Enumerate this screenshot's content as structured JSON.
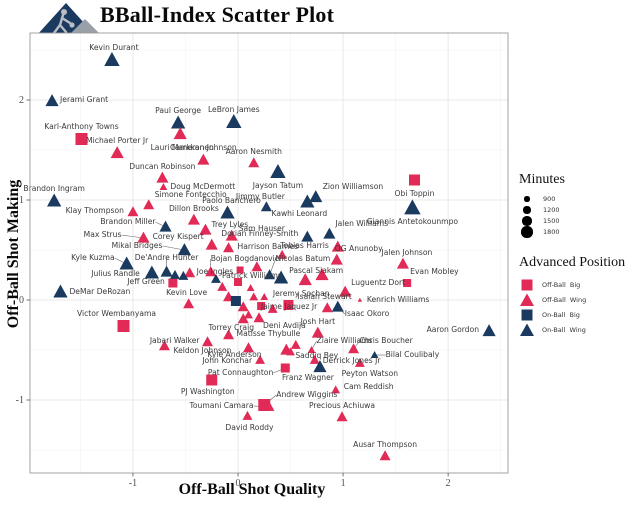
{
  "header": {
    "title": "BBall-Index Scatter Plot",
    "logo": "bball-index-logo"
  },
  "colors": {
    "off_ball": "#E12A56",
    "on_ball": "#1B3A5F",
    "label_text": "#3a3a3a",
    "grid_major": "#e3e3e3",
    "grid_minor": "#f2f2f2",
    "panel_border": "#9a9a9a",
    "tick_text": "#4d4d4d"
  },
  "styles": {
    "obb": {
      "shape": "square",
      "color": "#E12A56"
    },
    "obw": {
      "shape": "triangle",
      "color": "#E12A56"
    },
    "onb": {
      "shape": "square",
      "color": "#1B3A5F"
    },
    "onw": {
      "shape": "triangle",
      "color": "#1B3A5F"
    }
  },
  "legend": {
    "size": {
      "title": "Minutes",
      "entries": [
        {
          "label": "900",
          "r": 2.6
        },
        {
          "label": "1200",
          "r": 3.6
        },
        {
          "label": "1500",
          "r": 4.6
        },
        {
          "label": "1800",
          "r": 5.6
        }
      ]
    },
    "position": {
      "title": "Advanced Position",
      "entries": [
        {
          "label": "Off-Ball  Big",
          "key": "obb"
        },
        {
          "label": "Off-Ball  Wing",
          "key": "obw"
        },
        {
          "label": "On-Ball  Big",
          "key": "onb"
        },
        {
          "label": "On-Ball  Wing",
          "key": "onw"
        }
      ]
    }
  },
  "chart_data": {
    "type": "scatter",
    "title": "BBall-Index Scatter Plot",
    "xlabel": "Off-Ball Shot Quality",
    "ylabel": "Off-Ball Shot Making",
    "xlim": [
      -1.98,
      2.57
    ],
    "ylim": [
      -1.73,
      2.67
    ],
    "xticks": [
      -1,
      0,
      1,
      2
    ],
    "yticks": [
      -1,
      0,
      1,
      2
    ],
    "xminor": [
      -1.5,
      -0.5,
      0.5,
      1.5,
      2.5
    ],
    "yminor": [
      -1.5,
      -0.5,
      0.5,
      1.5,
      2.5
    ],
    "size_encoding": "minutes",
    "shape_encoding": "advanced position",
    "points": [
      {
        "n": "Kevin Durant",
        "x": -1.2,
        "y": 2.4,
        "p": "onw",
        "s": 7,
        "lp": [
          2,
          -10
        ],
        "a": "m"
      },
      {
        "n": "Jerami Grant",
        "x": -1.77,
        "y": 1.99,
        "p": "onw",
        "s": 6,
        "lp": [
          8,
          1
        ],
        "a": "s"
      },
      {
        "n": "Karl-Anthony Towns",
        "x": -1.49,
        "y": 1.61,
        "p": "obb",
        "s": 6,
        "lp": [
          0,
          -10
        ],
        "a": "m"
      },
      {
        "n": "Paul George",
        "x": -0.57,
        "y": 1.77,
        "p": "onw",
        "s": 6.5,
        "lp": [
          0,
          -10
        ],
        "a": "m"
      },
      {
        "n": "LeBron James",
        "x": -0.04,
        "y": 1.78,
        "p": "onw",
        "s": 7,
        "lp": [
          0,
          -10
        ],
        "a": "m"
      },
      {
        "n": "Lauri Markkanen",
        "x": -0.55,
        "y": 1.66,
        "p": "obw",
        "s": 6,
        "lp": [
          2,
          16
        ],
        "a": "m"
      },
      {
        "n": "Michael Porter Jr",
        "x": -1.15,
        "y": 1.47,
        "p": "obw",
        "s": 6,
        "lp": [
          0,
          -10
        ],
        "a": "m"
      },
      {
        "n": "Cameron Johnson",
        "x": -0.33,
        "y": 1.4,
        "p": "obw",
        "s": 5.5,
        "lp": [
          0,
          -10
        ],
        "a": "m"
      },
      {
        "n": "Aaron Nesmith",
        "x": 0.15,
        "y": 1.37,
        "p": "obw",
        "s": 5,
        "lp": [
          0,
          -9
        ],
        "a": "m"
      },
      {
        "n": "Duncan Robinson",
        "x": -0.72,
        "y": 1.22,
        "p": "obw",
        "s": 5.5,
        "lp": [
          0,
          -9
        ],
        "a": "m"
      },
      {
        "n": "Doug McDermott",
        "x": -0.71,
        "y": 1.13,
        "p": "obw",
        "s": 3.5,
        "lp": [
          7,
          2
        ],
        "a": "s"
      },
      {
        "n": "Jayson Tatum",
        "x": 0.38,
        "y": 1.28,
        "p": "onw",
        "s": 7,
        "lp": [
          0,
          16
        ],
        "a": "m"
      },
      {
        "n": "Obi Toppin",
        "x": 1.68,
        "y": 1.2,
        "p": "obb",
        "s": 5.5,
        "lp": [
          0,
          16
        ],
        "a": "m"
      },
      {
        "n": "Brandon Ingram",
        "x": -1.75,
        "y": 0.99,
        "p": "onw",
        "s": 6.5,
        "lp": [
          0,
          -10
        ],
        "a": "m"
      },
      {
        "n": "Zion Williamson",
        "x": 0.74,
        "y": 1.03,
        "p": "onw",
        "s": 6,
        "lp": [
          7,
          -8
        ],
        "a": "s"
      },
      {
        "n": "Jimmy Butler",
        "x": 0.27,
        "y": 0.93,
        "p": "onw",
        "s": 5,
        "lp": [
          -6,
          -8
        ],
        "a": "m"
      },
      {
        "n": "Kawhi Leonard",
        "x": 0.66,
        "y": 0.98,
        "p": "onw",
        "s": 6.5,
        "lp": [
          -8,
          14
        ],
        "a": "m"
      },
      {
        "n": "Giannis Antetokounmpo",
        "x": 1.66,
        "y": 0.92,
        "p": "onw",
        "s": 7.5,
        "lp": [
          0,
          16
        ],
        "a": "m"
      },
      {
        "n": "Simone Fontecchio",
        "x": -0.85,
        "y": 0.95,
        "p": "obw",
        "s": 5,
        "lp": [
          6,
          -8
        ],
        "a": "s"
      },
      {
        "n": "Klay Thompson",
        "x": -1.0,
        "y": 0.88,
        "p": "obw",
        "s": 5,
        "lp": [
          -9,
          1
        ],
        "a": "e"
      },
      {
        "n": "Dillon Brooks",
        "x": -0.42,
        "y": 0.8,
        "p": "obw",
        "s": 5.5,
        "lp": [
          0,
          -9
        ],
        "a": "m"
      },
      {
        "n": "Paolo Banchero",
        "x": -0.1,
        "y": 0.87,
        "p": "onw",
        "s": 6.5,
        "lp": [
          4,
          -10
        ],
        "a": "m"
      },
      {
        "n": "Brandon Miller",
        "x": -0.69,
        "y": 0.73,
        "p": "onw",
        "s": 5.5,
        "lp": [
          -10,
          -3
        ],
        "a": "e",
        "ld": 1
      },
      {
        "n": "Trey Lyles",
        "x": -0.31,
        "y": 0.7,
        "p": "obw",
        "s": 5.5,
        "lp": [
          6,
          -3
        ],
        "a": "s"
      },
      {
        "n": "Max Strus",
        "x": -0.9,
        "y": 0.62,
        "p": "obw",
        "s": 5.5,
        "lp": [
          -22,
          -1
        ],
        "a": "e",
        "ld": 1
      },
      {
        "n": "Sam Hauser",
        "x": -0.06,
        "y": 0.64,
        "p": "obw",
        "s": 5.5,
        "lp": [
          7,
          -5
        ],
        "a": "s"
      },
      {
        "n": "Dorian Finney-Smith",
        "x": 0.66,
        "y": 0.63,
        "p": "onw",
        "s": 5.5,
        "lp": [
          -9,
          -1
        ],
        "a": "e"
      },
      {
        "n": "Corey Kispert",
        "x": -0.25,
        "y": 0.55,
        "p": "obw",
        "s": 5.5,
        "lp": [
          -8,
          -6
        ],
        "a": "e"
      },
      {
        "n": "Harrison Barnes",
        "x": -0.09,
        "y": 0.52,
        "p": "obw",
        "s": 5,
        "lp": [
          9,
          1
        ],
        "a": "s"
      },
      {
        "n": "Mikal Bridges",
        "x": -0.51,
        "y": 0.5,
        "p": "onw",
        "s": 6,
        "lp": [
          -22,
          -2
        ],
        "a": "e",
        "ld": 1
      },
      {
        "n": "Tobias Harris",
        "x": 0.95,
        "y": 0.53,
        "p": "obw",
        "s": 5.5,
        "lp": [
          -9,
          1
        ],
        "a": "e"
      },
      {
        "n": "Jalen Williams",
        "x": 0.87,
        "y": 0.66,
        "p": "onw",
        "s": 5.5,
        "lp": [
          6,
          -8
        ],
        "a": "s"
      },
      {
        "n": "OG Anunoby",
        "x": 0.94,
        "y": 0.4,
        "p": "obw",
        "s": 5.5,
        "lp": [
          -2,
          -9
        ],
        "a": "s"
      },
      {
        "n": "Bojan Bogdanovic",
        "x": -0.26,
        "y": 0.28,
        "p": "obw",
        "s": 5,
        "lp": [
          0,
          -11
        ],
        "a": "s",
        "ld": 1
      },
      {
        "n": "Nicolas Batum",
        "x": 0.3,
        "y": 0.25,
        "p": "onw",
        "s": 5,
        "lp": [
          6,
          -14
        ],
        "a": "s",
        "ld": 1
      },
      {
        "n": "Pascal Siakam",
        "x": 0.41,
        "y": 0.22,
        "p": "onw",
        "s": 6.5,
        "lp": [
          8,
          -5
        ],
        "a": "s"
      },
      {
        "n": "Patrick Williams",
        "x": -0.21,
        "y": 0.21,
        "p": "onw",
        "s": 4.5,
        "lp": [
          6,
          -1
        ],
        "a": "s"
      },
      {
        "n": "Kyle Kuzma",
        "x": -1.06,
        "y": 0.36,
        "p": "onw",
        "s": 6.5,
        "lp": [
          -12,
          -4
        ],
        "a": "e",
        "ld": 1
      },
      {
        "n": "De'Andre Hunter",
        "x": -0.68,
        "y": 0.28,
        "p": "onw",
        "s": 5.5,
        "lp": [
          0,
          -12
        ],
        "a": "m",
        "ld": 1
      },
      {
        "n": "Julius Randle",
        "x": -0.82,
        "y": 0.27,
        "p": "onw",
        "s": 6.5,
        "lp": [
          -12,
          3
        ],
        "a": "e"
      },
      {
        "n": "Joe Ingles",
        "x": -0.46,
        "y": 0.27,
        "p": "obw",
        "s": 5,
        "lp": [
          7,
          1
        ],
        "a": "s"
      },
      {
        "n": "Jeff Green",
        "x": -0.62,
        "y": 0.17,
        "p": "obb",
        "s": 4.5,
        "lp": [
          -8,
          1
        ],
        "a": "e"
      },
      {
        "n": "Kevin Love",
        "x": -0.47,
        "y": -0.04,
        "p": "obw",
        "s": 5,
        "lp": [
          -2,
          -9
        ],
        "a": "m"
      },
      {
        "n": "DeMar DeRozan",
        "x": -1.69,
        "y": 0.08,
        "p": "onw",
        "s": 6.5,
        "lp": [
          9,
          2
        ],
        "a": "s"
      },
      {
        "n": "Victor Wembanyama",
        "x": -1.09,
        "y": -0.26,
        "p": "obb",
        "s": 6,
        "lp": [
          -7,
          -10
        ],
        "a": "m"
      },
      {
        "n": "Jalen Johnson",
        "x": 1.57,
        "y": 0.36,
        "p": "obw",
        "s": 5.5,
        "lp": [
          4,
          -9
        ],
        "a": "m"
      },
      {
        "n": "Evan Mobley",
        "x": 1.61,
        "y": 0.17,
        "p": "obb",
        "s": 4,
        "lp": [
          3,
          -9
        ],
        "a": "s"
      },
      {
        "n": "Jeremy Sochan",
        "x": 0.64,
        "y": 0.2,
        "p": "obw",
        "s": 6,
        "lp": [
          -4,
          16
        ],
        "a": "m"
      },
      {
        "n": "Luguentz Dort",
        "x": 1.02,
        "y": 0.08,
        "p": "obw",
        "s": 5.5,
        "lp": [
          6,
          -7
        ],
        "a": "s"
      },
      {
        "n": "Isaiah Stewart",
        "x": 0.48,
        "y": -0.05,
        "p": "obb",
        "s": 5,
        "lp": [
          9,
          -6
        ],
        "a": "s"
      },
      {
        "n": "Kenrich Williams",
        "x": 1.16,
        "y": 0.0,
        "p": "obw",
        "s": 2,
        "lp": [
          7,
          2
        ],
        "a": "s"
      },
      {
        "n": "Jaime Jaquez Jr",
        "x": 0.85,
        "y": -0.08,
        "p": "obw",
        "s": 5,
        "lp": [
          -10,
          1
        ],
        "a": "e"
      },
      {
        "n": "Isaac Okoro",
        "x": 0.95,
        "y": -0.07,
        "p": "onw",
        "s": 5.5,
        "lp": [
          7,
          9
        ],
        "a": "s",
        "ld": 1
      },
      {
        "n": "Deni Avdija",
        "x": 0.2,
        "y": -0.18,
        "p": "obw",
        "s": 5,
        "lp": [
          4,
          10
        ],
        "a": "s"
      },
      {
        "n": "Torrey Craig",
        "x": 0.05,
        "y": -0.19,
        "p": "obw",
        "s": 5,
        "lp": [
          -12,
          11
        ],
        "a": "m"
      },
      {
        "n": "Josh Hart",
        "x": 0.76,
        "y": -0.33,
        "p": "obw",
        "s": 5.5,
        "lp": [
          0,
          -9
        ],
        "a": "m"
      },
      {
        "n": "Aaron Gordon",
        "x": 2.39,
        "y": -0.31,
        "p": "onw",
        "s": 6,
        "lp": [
          -10,
          1
        ],
        "a": "e"
      },
      {
        "n": "Matisse Thybulle",
        "x": -0.09,
        "y": -0.35,
        "p": "obw",
        "s": 5,
        "lp": [
          8,
          1
        ],
        "a": "s"
      },
      {
        "n": "Jabari Walker",
        "x": -0.29,
        "y": -0.42,
        "p": "obw",
        "s": 5,
        "lp": [
          -8,
          1
        ],
        "a": "e"
      },
      {
        "n": "Keldon Johnson",
        "x": -0.7,
        "y": -0.46,
        "p": "obw",
        "s": 5,
        "lp": [
          9,
          7
        ],
        "a": "s"
      },
      {
        "n": "Kyle Anderson",
        "x": 0.1,
        "y": -0.48,
        "p": "obw",
        "s": 5,
        "lp": [
          -14,
          9
        ],
        "a": "m"
      },
      {
        "n": "John Konchar",
        "x": 0.21,
        "y": -0.6,
        "p": "obw",
        "s": 4.5,
        "lp": [
          -8,
          3
        ],
        "a": "e"
      },
      {
        "n": "Saddiq Bey",
        "x": 0.46,
        "y": -0.5,
        "p": "obw",
        "s": 5.5,
        "lp": [
          9,
          8
        ],
        "a": "s"
      },
      {
        "n": "Ziaire Williams",
        "x": 0.7,
        "y": -0.5,
        "p": "obw",
        "s": 3.5,
        "lp": [
          5,
          -7
        ],
        "a": "s",
        "ld": 1
      },
      {
        "n": "Derrick Jones Jr",
        "x": 0.73,
        "y": -0.6,
        "p": "obw",
        "s": 4.5,
        "lp": [
          8,
          3
        ],
        "a": "s"
      },
      {
        "n": "Franz Wagner",
        "x": 0.78,
        "y": -0.67,
        "p": "onw",
        "s": 6,
        "lp": [
          -12,
          13
        ],
        "a": "m"
      },
      {
        "n": "Chris Boucher",
        "x": 1.1,
        "y": -0.49,
        "p": "obw",
        "s": 5,
        "lp": [
          6,
          -6
        ],
        "a": "s",
        "ld": 1
      },
      {
        "n": "Bilal Coulibaly",
        "x": 1.3,
        "y": -0.55,
        "p": "onw",
        "s": 3.5,
        "lp": [
          11,
          2
        ],
        "a": "s",
        "ld": 1
      },
      {
        "n": "Pat Connaughton",
        "x": 0.45,
        "y": -0.68,
        "p": "obb",
        "s": 4.5,
        "lp": [
          -12,
          7
        ],
        "a": "e",
        "ld": 1
      },
      {
        "n": "PJ Washington",
        "x": -0.25,
        "y": -0.8,
        "p": "obb",
        "s": 5.5,
        "lp": [
          -4,
          14
        ],
        "a": "m"
      },
      {
        "n": "Peyton Watson",
        "x": 1.16,
        "y": -0.63,
        "p": "obw",
        "s": 4.5,
        "lp": [
          10,
          13
        ],
        "a": "m"
      },
      {
        "n": "Cam Reddish",
        "x": 0.93,
        "y": -0.9,
        "p": "obw",
        "s": 4,
        "lp": [
          8,
          -1
        ],
        "a": "s"
      },
      {
        "n": "Andrew Wiggins",
        "x": 0.25,
        "y": -1.05,
        "p": "obb",
        "s": 6,
        "lp": [
          12,
          -8
        ],
        "a": "s",
        "ld": 1
      },
      {
        "n": "Toumani Camara",
        "x": 0.3,
        "y": -1.07,
        "p": "obw",
        "s": 4.5,
        "lp": [
          -16,
          1
        ],
        "a": "e",
        "ld": 1
      },
      {
        "n": "David Roddy",
        "x": 0.09,
        "y": -1.16,
        "p": "obw",
        "s": 4.5,
        "lp": [
          2,
          14
        ],
        "a": "m"
      },
      {
        "n": "Precious Achiuwa",
        "x": 0.99,
        "y": -1.17,
        "p": "obw",
        "s": 5,
        "lp": [
          0,
          -9
        ],
        "a": "m"
      },
      {
        "n": "Ausar Thompson",
        "x": 1.4,
        "y": -1.56,
        "p": "obw",
        "s": 5,
        "lp": [
          0,
          -9
        ],
        "a": "m"
      },
      {
        "n": "",
        "x": -0.09,
        "y": 0.03,
        "p": "obw",
        "s": 5
      },
      {
        "n": "",
        "x": 0.05,
        "y": -0.07,
        "p": "obw",
        "s": 5
      },
      {
        "n": "",
        "x": 0.15,
        "y": 0.03,
        "p": "obw",
        "s": 4
      },
      {
        "n": "",
        "x": 0.25,
        "y": 0.03,
        "p": "obw",
        "s": 3.5
      },
      {
        "n": "",
        "x": -0.02,
        "y": -0.01,
        "p": "onb",
        "s": 5
      },
      {
        "n": "",
        "x": 0.0,
        "y": 0.18,
        "p": "obb",
        "s": 4
      },
      {
        "n": "",
        "x": -0.15,
        "y": 0.13,
        "p": "obw",
        "s": 4.5
      },
      {
        "n": "",
        "x": 0.18,
        "y": 0.33,
        "p": "obw",
        "s": 5
      },
      {
        "n": "",
        "x": 0.42,
        "y": 0.45,
        "p": "obw",
        "s": 4.5
      },
      {
        "n": "",
        "x": 0.22,
        "y": -0.06,
        "p": "obb",
        "s": 4
      },
      {
        "n": "",
        "x": 0.33,
        "y": -0.09,
        "p": "obw",
        "s": 4.5
      },
      {
        "n": "",
        "x": 0.1,
        "y": -0.15,
        "p": "obw",
        "s": 4
      },
      {
        "n": "",
        "x": 0.8,
        "y": 0.25,
        "p": "obw",
        "s": 6
      },
      {
        "n": "",
        "x": -0.6,
        "y": 0.25,
        "p": "onw",
        "s": 4.5
      },
      {
        "n": "",
        "x": -0.52,
        "y": 0.24,
        "p": "onw",
        "s": 4.5
      },
      {
        "n": "",
        "x": 0.12,
        "y": 0.12,
        "p": "obw",
        "s": 3.5
      },
      {
        "n": "",
        "x": 0.02,
        "y": 0.3,
        "p": "obb",
        "s": 3.5
      },
      {
        "n": "",
        "x": 0.55,
        "y": -0.45,
        "p": "obw",
        "s": 4.5
      },
      {
        "n": "",
        "x": 0.5,
        "y": -0.52,
        "p": "obw",
        "s": 4
      }
    ]
  }
}
